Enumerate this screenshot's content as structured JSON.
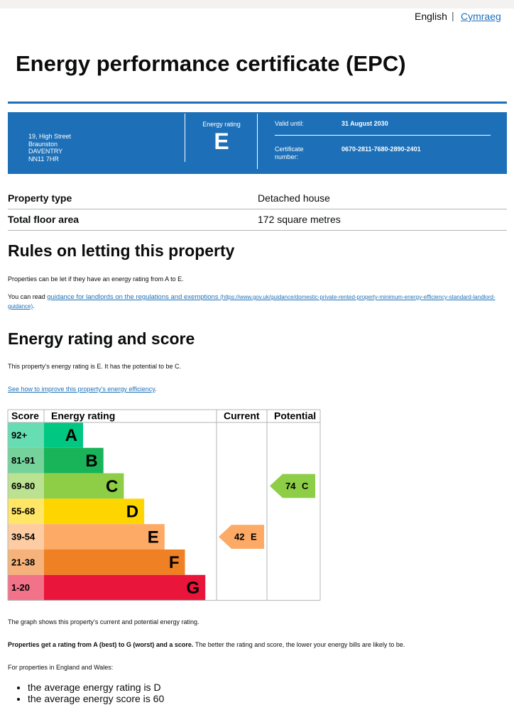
{
  "header": {
    "languages": [
      "English",
      "Cymraeg"
    ],
    "title": "Energy performance certificate (EPC)"
  },
  "summary": {
    "address": [
      "19, High Street",
      "Braunston",
      "DAVENTRY",
      "NN11 7HR"
    ],
    "rating_label": "Energy rating",
    "rating": "E",
    "valid_label": "Valid until:",
    "valid": "31 August 2030",
    "cert_label": "Certificate number:",
    "cert": "0670-2811-7680-2890-2401"
  },
  "property": [
    [
      "Property type",
      "Detached house"
    ],
    [
      "Total floor area",
      "172 square metres"
    ]
  ],
  "letting": {
    "heading": "Rules on letting this property",
    "text": "Properties can be let if they have an energy rating from A to E.",
    "read_prefix": "You can read",
    "link": "guidance for landlords on the regulations and exemptions",
    "url": "(https://www.gov.uk/guidance/domestic-private-rented-property-minimum-energy-efficiency-standard-landlord-guidance)",
    "suffix": "."
  },
  "score": {
    "heading": "Energy rating and score",
    "text": "This property’s energy rating is E. It has the potential to be C.",
    "link": "See how to improve this property’s energy efficiency",
    "link_suffix": "."
  },
  "chart": {
    "headers": [
      "Score",
      "Energy rating",
      "Current",
      "Potential"
    ],
    "bands": [
      {
        "range": "92+",
        "letter": "A",
        "color": "#00c781"
      },
      {
        "range": "81-91",
        "letter": "B",
        "color": "#19b459"
      },
      {
        "range": "69-80",
        "letter": "C",
        "color": "#8dce46"
      },
      {
        "range": "55-68",
        "letter": "D",
        "color": "#ffd500"
      },
      {
        "range": "39-54",
        "letter": "E",
        "color": "#fcaa65"
      },
      {
        "range": "21-38",
        "letter": "F",
        "color": "#ef8023"
      },
      {
        "range": "1-20",
        "letter": "G",
        "color": "#e9153b"
      }
    ],
    "current": {
      "score": 42,
      "letter": "E"
    },
    "potential": {
      "score": 74,
      "letter": "C"
    }
  },
  "footer": {
    "graph_note": "The graph shows this property’s current and potential energy rating.",
    "rating_bold": "Properties get a rating from A (best) to G (worst) and a score.",
    "rating_rest": "The better the rating and score, the lower your energy bills are likely to be.",
    "average_intro": "For properties in England and Wales:",
    "bullets": [
      "the average energy rating is D",
      "the average energy score is 60"
    ]
  }
}
